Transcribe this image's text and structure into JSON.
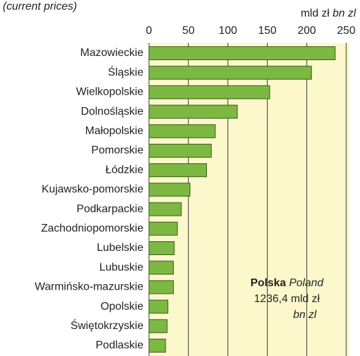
{
  "chart_data": {
    "type": "bar",
    "orientation": "horizontal",
    "subtitle": "(current prices)",
    "unit_label": "mld zł",
    "unit_label_en": "bn zl",
    "categories": [
      "Mazowieckie",
      "Śląskie",
      "Wielkopolskie",
      "Dolnośląskie",
      "Małopolskie",
      "Pomorskie",
      "Łódzkie",
      "Kujawsko-pomorskie",
      "Podkarpackie",
      "Zachodniopomorskie",
      "Lubelskie",
      "Lubuskie",
      "Warmińsko-mazurskie",
      "Opolskie",
      "Świętokrzyskie",
      "Podlaskie"
    ],
    "values": [
      236,
      206,
      153,
      112,
      84,
      79,
      73,
      52,
      41,
      36,
      32,
      31,
      31,
      24,
      23,
      21
    ],
    "color": "#7cb842",
    "xlim": [
      0,
      250
    ],
    "xticks": [
      0,
      50,
      100,
      150,
      200,
      250
    ],
    "grid": true,
    "annotation": {
      "name": "Polska",
      "name_en": "Poland",
      "total": "1236,4 mld zł",
      "total_en": "bn zl"
    }
  }
}
